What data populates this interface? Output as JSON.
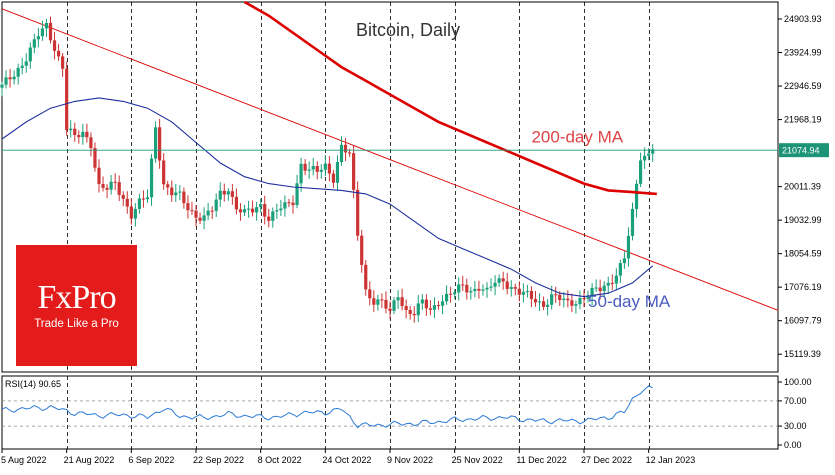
{
  "chart_data": [
    {
      "type": "line",
      "title": "Bitcoin, Daily",
      "price_axis": {
        "ticks": [
          "24903.93",
          "23924.99",
          "22946.59",
          "21968.19",
          "20011.39",
          "19032.99",
          "18054.59",
          "17076.19",
          "16097.79",
          "15119.39"
        ],
        "ylim": [
          14600,
          25400
        ]
      },
      "current_price_label": "21074.94",
      "current_price": 21074.94,
      "x_ticks": [
        "5 Aug 2022",
        "21 Aug 2022",
        "6 Sep 2022",
        "22 Sep 2022",
        "8 Oct 2022",
        "24 Oct 2022",
        "9 Nov 2022",
        "25 Nov 2022",
        "11 Dec 2022",
        "27 Dec 2022",
        "12 Jan 2023"
      ],
      "vertical_grid_ticks": [
        "21 Aug 2022",
        "6 Sep 2022",
        "22 Sep 2022",
        "8 Oct 2022",
        "24 Oct 2022",
        "9 Nov 2022",
        "25 Nov 2022",
        "11 Dec 2022",
        "27 Dec 2022",
        "12 Jan 2023"
      ],
      "xlim_days": [
        0,
        192
      ],
      "candle_step_days": 1,
      "series": [
        {
          "name": "",
          "kind": "close",
          "color": "#000000",
          "close_keypoints": [
            [
              0,
              22900
            ],
            [
              3,
              23300
            ],
            [
              6,
              23800
            ],
            [
              9,
              24400
            ],
            [
              11,
              24700
            ],
            [
              13,
              24100
            ],
            [
              15,
              23500
            ],
            [
              16,
              21700
            ],
            [
              18,
              21400
            ],
            [
              20,
              21600
            ],
            [
              22,
              21300
            ],
            [
              24,
              20000
            ],
            [
              26,
              19900
            ],
            [
              28,
              20100
            ],
            [
              30,
              19700
            ],
            [
              32,
              19200
            ],
            [
              34,
              19500
            ],
            [
              36,
              19700
            ],
            [
              38,
              21800
            ],
            [
              40,
              20100
            ],
            [
              42,
              19800
            ],
            [
              44,
              19700
            ],
            [
              46,
              19400
            ],
            [
              48,
              19200
            ],
            [
              50,
              19100
            ],
            [
              52,
              19300
            ],
            [
              54,
              19800
            ],
            [
              56,
              20000
            ],
            [
              58,
              19400
            ],
            [
              60,
              19200
            ],
            [
              62,
              19300
            ],
            [
              64,
              19500
            ],
            [
              66,
              19100
            ],
            [
              68,
              19300
            ],
            [
              70,
              19400
            ],
            [
              72,
              19600
            ],
            [
              74,
              20700
            ],
            [
              76,
              20500
            ],
            [
              78,
              20400
            ],
            [
              80,
              20600
            ],
            [
              82,
              20300
            ],
            [
              84,
              21200
            ],
            [
              86,
              20900
            ],
            [
              88,
              18600
            ],
            [
              90,
              17000
            ],
            [
              92,
              16700
            ],
            [
              94,
              16600
            ],
            [
              96,
              16300
            ],
            [
              98,
              16900
            ],
            [
              100,
              16400
            ],
            [
              102,
              16300
            ],
            [
              104,
              16600
            ],
            [
              106,
              16400
            ],
            [
              108,
              16700
            ],
            [
              110,
              16800
            ],
            [
              112,
              16900
            ],
            [
              114,
              17100
            ],
            [
              116,
              17000
            ],
            [
              118,
              17100
            ],
            [
              120,
              16900
            ],
            [
              122,
              17200
            ],
            [
              124,
              17300
            ],
            [
              126,
              17100
            ],
            [
              128,
              16900
            ],
            [
              130,
              16800
            ],
            [
              132,
              16700
            ],
            [
              134,
              16600
            ],
            [
              136,
              16800
            ],
            [
              138,
              16700
            ],
            [
              140,
              16600
            ],
            [
              142,
              16700
            ],
            [
              144,
              16800
            ],
            [
              146,
              16900
            ],
            [
              148,
              17000
            ],
            [
              150,
              17200
            ],
            [
              152,
              17500
            ],
            [
              154,
              17900
            ],
            [
              156,
              19200
            ],
            [
              158,
              20900
            ],
            [
              160,
              21000
            ],
            [
              161,
              21100
            ]
          ]
        },
        {
          "name": "200-day MA",
          "kind": "ma",
          "color": "#dd0000",
          "points": [
            [
              60,
              25400
            ],
            [
              66,
              25000
            ],
            [
              72,
              24500
            ],
            [
              78,
              24000
            ],
            [
              84,
              23500
            ],
            [
              90,
              23100
            ],
            [
              96,
              22700
            ],
            [
              102,
              22300
            ],
            [
              108,
              21900
            ],
            [
              114,
              21600
            ],
            [
              120,
              21300
            ],
            [
              126,
              21000
            ],
            [
              132,
              20700
            ],
            [
              138,
              20400
            ],
            [
              144,
              20100
            ],
            [
              150,
              19900
            ],
            [
              156,
              19850
            ],
            [
              162,
              19800
            ]
          ]
        },
        {
          "name": "50-day MA",
          "kind": "ma",
          "color": "#1f2f9f",
          "points": [
            [
              0,
              21400
            ],
            [
              6,
              21900
            ],
            [
              12,
              22300
            ],
            [
              18,
              22500
            ],
            [
              24,
              22600
            ],
            [
              30,
              22500
            ],
            [
              36,
              22300
            ],
            [
              42,
              21900
            ],
            [
              48,
              21300
            ],
            [
              54,
              20700
            ],
            [
              60,
              20300
            ],
            [
              66,
              20100
            ],
            [
              72,
              20000
            ],
            [
              78,
              19950
            ],
            [
              84,
              19900
            ],
            [
              90,
              19800
            ],
            [
              96,
              19500
            ],
            [
              102,
              19000
            ],
            [
              108,
              18500
            ],
            [
              114,
              18200
            ],
            [
              120,
              17900
            ],
            [
              126,
              17600
            ],
            [
              132,
              17200
            ],
            [
              138,
              16900
            ],
            [
              144,
              16800
            ],
            [
              150,
              16900
            ],
            [
              156,
              17200
            ],
            [
              161,
              17700
            ]
          ]
        },
        {
          "name": "",
          "kind": "trendline",
          "color": "#dd0000",
          "points": [
            [
              0,
              25200
            ],
            [
              192,
              16400
            ]
          ]
        }
      ],
      "annotations": [
        {
          "text": "200-day MA",
          "x": 131,
          "y": 21300,
          "color": "#dd4444"
        },
        {
          "text": "50-day MA",
          "x": 145,
          "y": 16500,
          "color": "#4a5bbf"
        }
      ],
      "grid": true
    },
    {
      "type": "line",
      "title": "RSI(14) 90.65",
      "ticks": [
        "100.00",
        "70.00",
        "30.00",
        "0.00"
      ],
      "ylim": [
        0,
        100
      ],
      "levels": [
        70,
        30
      ],
      "series": [
        {
          "name": "",
          "color": "#2b7bd6",
          "keypoints": [
            [
              0,
              55
            ],
            [
              6,
              58
            ],
            [
              12,
              60
            ],
            [
              18,
              51
            ],
            [
              24,
              47
            ],
            [
              30,
              48
            ],
            [
              36,
              44
            ],
            [
              40,
              58
            ],
            [
              44,
              46
            ],
            [
              50,
              43
            ],
            [
              56,
              49
            ],
            [
              62,
              45
            ],
            [
              68,
              44
            ],
            [
              74,
              51
            ],
            [
              80,
              52
            ],
            [
              84,
              57
            ],
            [
              88,
              32
            ],
            [
              92,
              31
            ],
            [
              96,
              33
            ],
            [
              102,
              34
            ],
            [
              108,
              37
            ],
            [
              112,
              40
            ],
            [
              118,
              42
            ],
            [
              124,
              44
            ],
            [
              130,
              40
            ],
            [
              134,
              38
            ],
            [
              138,
              39
            ],
            [
              142,
              38
            ],
            [
              146,
              40
            ],
            [
              150,
              44
            ],
            [
              154,
              52
            ],
            [
              156,
              73
            ],
            [
              158,
              86
            ],
            [
              161,
              90.65
            ]
          ]
        }
      ]
    }
  ],
  "logo": {
    "name": "FxPro",
    "tagline": "Trade Like a Pro"
  },
  "colors": {
    "candle_up": "#1aa07a",
    "candle_down": "#cc3333",
    "grid": "#000000",
    "price_line": "#1a9a7a",
    "current_price_bg": "#1d9478",
    "logo_bg": "#e41b1b"
  }
}
